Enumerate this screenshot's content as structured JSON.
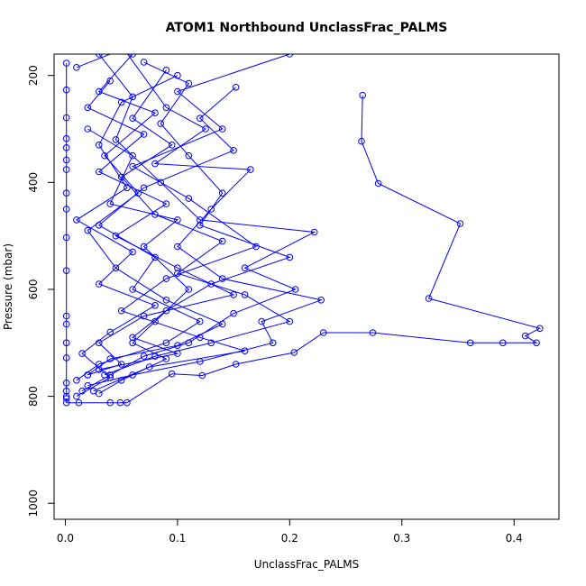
{
  "chart_data": {
    "type": "scatter",
    "title": "ATOM1 Northbound UnclassFrac_PALMS",
    "xlabel": "UnclassFrac_PALMS",
    "ylabel": "Pressure (mbar)",
    "xlim": [
      -0.01,
      0.44
    ],
    "ylim": [
      1030,
      160
    ],
    "y_reversed": true,
    "x_ticks": [
      0.0,
      0.1,
      0.2,
      0.3,
      0.4
    ],
    "x_tick_labels": [
      "0.0",
      "0.1",
      "0.2",
      "0.3",
      "0.4"
    ],
    "y_ticks": [
      200,
      400,
      600,
      800,
      1000
    ],
    "y_tick_labels": [
      "200",
      "400",
      "600",
      "800",
      "1000"
    ],
    "grid": false,
    "legend": "none",
    "colors": {
      "series": "#0000ff",
      "axis": "#000000",
      "background": "#ffffff"
    },
    "series": [
      {
        "marker": "open-circle",
        "line": true,
        "points": [
          {
            "x": 0.265,
            "y": 237
          },
          {
            "x": 0.264,
            "y": 323
          },
          {
            "x": 0.279,
            "y": 402
          },
          {
            "x": 0.352,
            "y": 477
          },
          {
            "x": 0.324,
            "y": 617
          },
          {
            "x": 0.423,
            "y": 673
          },
          {
            "x": 0.41,
            "y": 687
          },
          {
            "x": 0.42,
            "y": 700
          },
          {
            "x": 0.39,
            "y": 700
          },
          {
            "x": 0.361,
            "y": 700
          },
          {
            "x": 0.274,
            "y": 681
          },
          {
            "x": 0.23,
            "y": 681
          },
          {
            "x": 0.204,
            "y": 718
          },
          {
            "x": 0.152,
            "y": 740
          },
          {
            "x": 0.122,
            "y": 761
          },
          {
            "x": 0.095,
            "y": 758
          },
          {
            "x": 0.055,
            "y": 812
          },
          {
            "x": 0.049,
            "y": 812
          },
          {
            "x": 0.04,
            "y": 812
          },
          {
            "x": 0.012,
            "y": 812
          },
          {
            "x": 0.001,
            "y": 812
          },
          {
            "x": 0.001,
            "y": 804
          }
        ]
      },
      {
        "marker": "open-circle",
        "line": true,
        "points": [
          {
            "x": 0.001,
            "y": 177
          },
          {
            "x": 0.001,
            "y": 227
          },
          {
            "x": 0.001,
            "y": 279
          },
          {
            "x": 0.001,
            "y": 318
          },
          {
            "x": 0.001,
            "y": 335
          },
          {
            "x": 0.001,
            "y": 358
          },
          {
            "x": 0.001,
            "y": 376
          },
          {
            "x": 0.001,
            "y": 420
          },
          {
            "x": 0.001,
            "y": 450
          },
          {
            "x": 0.001,
            "y": 503
          },
          {
            "x": 0.001,
            "y": 565
          },
          {
            "x": 0.001,
            "y": 650
          },
          {
            "x": 0.001,
            "y": 665
          },
          {
            "x": 0.001,
            "y": 700
          },
          {
            "x": 0.001,
            "y": 728
          },
          {
            "x": 0.001,
            "y": 775
          },
          {
            "x": 0.001,
            "y": 790
          },
          {
            "x": 0.001,
            "y": 800
          }
        ]
      },
      {
        "marker": "open-circle",
        "line": true,
        "points": [
          {
            "x": 0.03,
            "y": 160
          },
          {
            "x": 0.06,
            "y": 240
          },
          {
            "x": 0.045,
            "y": 320
          },
          {
            "x": 0.085,
            "y": 400
          },
          {
            "x": 0.12,
            "y": 470
          },
          {
            "x": 0.222,
            "y": 493
          },
          {
            "x": 0.16,
            "y": 560
          },
          {
            "x": 0.205,
            "y": 600
          },
          {
            "x": 0.15,
            "y": 645
          },
          {
            "x": 0.11,
            "y": 700
          },
          {
            "x": 0.07,
            "y": 725
          },
          {
            "x": 0.04,
            "y": 760
          },
          {
            "x": 0.015,
            "y": 790
          }
        ]
      },
      {
        "marker": "open-circle",
        "line": true,
        "points": [
          {
            "x": 0.01,
            "y": 185
          },
          {
            "x": 0.052,
            "y": 150
          },
          {
            "x": 0.09,
            "y": 260
          },
          {
            "x": 0.125,
            "y": 300
          },
          {
            "x": 0.08,
            "y": 365
          },
          {
            "x": 0.165,
            "y": 376
          },
          {
            "x": 0.13,
            "y": 450
          },
          {
            "x": 0.1,
            "y": 520
          },
          {
            "x": 0.14,
            "y": 580
          },
          {
            "x": 0.228,
            "y": 620
          },
          {
            "x": 0.175,
            "y": 660
          },
          {
            "x": 0.185,
            "y": 700
          },
          {
            "x": 0.12,
            "y": 735
          },
          {
            "x": 0.06,
            "y": 760
          },
          {
            "x": 0.02,
            "y": 780
          }
        ]
      },
      {
        "marker": "open-circle",
        "line": true,
        "points": [
          {
            "x": 0.152,
            "y": 222
          },
          {
            "x": 0.12,
            "y": 280
          },
          {
            "x": 0.15,
            "y": 340
          },
          {
            "x": 0.07,
            "y": 410
          },
          {
            "x": 0.03,
            "y": 480
          },
          {
            "x": 0.08,
            "y": 540
          },
          {
            "x": 0.06,
            "y": 600
          },
          {
            "x": 0.12,
            "y": 660
          },
          {
            "x": 0.09,
            "y": 700
          },
          {
            "x": 0.03,
            "y": 740
          },
          {
            "x": 0.01,
            "y": 770
          }
        ]
      },
      {
        "marker": "open-circle",
        "line": true,
        "points": [
          {
            "x": 0.2,
            "y": 160
          },
          {
            "x": 0.1,
            "y": 230
          },
          {
            "x": 0.14,
            "y": 300
          },
          {
            "x": 0.06,
            "y": 370
          },
          {
            "x": 0.11,
            "y": 430
          },
          {
            "x": 0.17,
            "y": 520
          },
          {
            "x": 0.09,
            "y": 580
          },
          {
            "x": 0.05,
            "y": 640
          },
          {
            "x": 0.12,
            "y": 690
          },
          {
            "x": 0.16,
            "y": 715
          },
          {
            "x": 0.075,
            "y": 745
          },
          {
            "x": 0.025,
            "y": 790
          }
        ]
      },
      {
        "marker": "open-circle",
        "line": true,
        "points": [
          {
            "x": 0.04,
            "y": 210
          },
          {
            "x": 0.02,
            "y": 260
          },
          {
            "x": 0.07,
            "y": 310
          },
          {
            "x": 0.03,
            "y": 380
          },
          {
            "x": 0.09,
            "y": 440
          },
          {
            "x": 0.045,
            "y": 500
          },
          {
            "x": 0.1,
            "y": 560
          },
          {
            "x": 0.15,
            "y": 610
          },
          {
            "x": 0.07,
            "y": 650
          },
          {
            "x": 0.03,
            "y": 700
          },
          {
            "x": 0.05,
            "y": 740
          },
          {
            "x": 0.02,
            "y": 760
          }
        ]
      },
      {
        "marker": "open-circle",
        "line": true,
        "points": [
          {
            "x": 0.1,
            "y": 200
          },
          {
            "x": 0.05,
            "y": 250
          },
          {
            "x": 0.03,
            "y": 330
          },
          {
            "x": 0.055,
            "y": 410
          },
          {
            "x": 0.01,
            "y": 470
          },
          {
            "x": 0.06,
            "y": 530
          },
          {
            "x": 0.03,
            "y": 590
          },
          {
            "x": 0.08,
            "y": 630
          },
          {
            "x": 0.04,
            "y": 680
          },
          {
            "x": 0.015,
            "y": 720
          },
          {
            "x": 0.04,
            "y": 765
          },
          {
            "x": 0.01,
            "y": 800
          }
        ]
      },
      {
        "marker": "open-circle",
        "line": true,
        "points": [
          {
            "x": 0.07,
            "y": 175
          },
          {
            "x": 0.11,
            "y": 215
          },
          {
            "x": 0.085,
            "y": 290
          },
          {
            "x": 0.11,
            "y": 350
          },
          {
            "x": 0.14,
            "y": 420
          },
          {
            "x": 0.12,
            "y": 480
          },
          {
            "x": 0.2,
            "y": 540
          },
          {
            "x": 0.13,
            "y": 590
          },
          {
            "x": 0.09,
            "y": 640
          },
          {
            "x": 0.06,
            "y": 690
          },
          {
            "x": 0.1,
            "y": 720
          },
          {
            "x": 0.03,
            "y": 750
          }
        ]
      },
      {
        "marker": "open-circle",
        "line": true,
        "points": [
          {
            "x": 0.02,
            "y": 300
          },
          {
            "x": 0.06,
            "y": 350
          },
          {
            "x": 0.04,
            "y": 440
          },
          {
            "x": 0.1,
            "y": 470
          },
          {
            "x": 0.07,
            "y": 520
          },
          {
            "x": 0.11,
            "y": 600
          },
          {
            "x": 0.08,
            "y": 660
          },
          {
            "x": 0.06,
            "y": 700
          },
          {
            "x": 0.09,
            "y": 730
          },
          {
            "x": 0.05,
            "y": 770
          },
          {
            "x": 0.03,
            "y": 795
          }
        ]
      },
      {
        "marker": "open-circle",
        "line": true,
        "points": [
          {
            "x": 0.06,
            "y": 160
          },
          {
            "x": 0.03,
            "y": 230
          },
          {
            "x": 0.08,
            "y": 270
          },
          {
            "x": 0.035,
            "y": 350
          },
          {
            "x": 0.065,
            "y": 420
          },
          {
            "x": 0.02,
            "y": 490
          },
          {
            "x": 0.045,
            "y": 560
          },
          {
            "x": 0.09,
            "y": 620
          },
          {
            "x": 0.14,
            "y": 665
          },
          {
            "x": 0.1,
            "y": 705
          },
          {
            "x": 0.04,
            "y": 730
          },
          {
            "x": 0.02,
            "y": 760
          }
        ]
      },
      {
        "marker": "open-circle",
        "line": true,
        "points": [
          {
            "x": 0.09,
            "y": 190
          },
          {
            "x": 0.06,
            "y": 280
          },
          {
            "x": 0.095,
            "y": 330
          },
          {
            "x": 0.05,
            "y": 390
          },
          {
            "x": 0.08,
            "y": 460
          },
          {
            "x": 0.14,
            "y": 510
          },
          {
            "x": 0.1,
            "y": 570
          },
          {
            "x": 0.16,
            "y": 610
          },
          {
            "x": 0.2,
            "y": 660
          },
          {
            "x": 0.13,
            "y": 700
          },
          {
            "x": 0.08,
            "y": 725
          },
          {
            "x": 0.035,
            "y": 760
          }
        ]
      }
    ]
  }
}
